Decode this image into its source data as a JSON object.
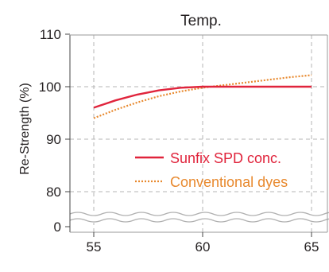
{
  "chart_data": {
    "type": "line",
    "title": "Temp.",
    "xlabel": "",
    "ylabel": "Re-Strength (%)",
    "xlim": [
      54,
      66
    ],
    "x_ticks": [
      "55",
      "60",
      "65"
    ],
    "y_ticks_upper": [
      "110",
      "100",
      "90",
      "80"
    ],
    "y_ticks_lower": [
      "0"
    ],
    "ylim_upper": [
      75,
      110
    ],
    "axis_break": true,
    "grid": true,
    "legend_position": "center-right",
    "series": [
      {
        "name": "Sunfix SPD conc.",
        "color": "#e0243c",
        "style": "solid",
        "x": [
          55,
          56,
          57,
          58,
          59,
          60,
          61,
          62,
          63,
          64,
          65
        ],
        "y": [
          96.0,
          97.4,
          98.5,
          99.3,
          99.8,
          100.0,
          100.0,
          100.0,
          100.0,
          100.0,
          100.0
        ]
      },
      {
        "name": "Conventional dyes",
        "color": "#e8892e",
        "style": "dotted",
        "x": [
          55,
          56,
          57,
          58,
          59,
          60,
          61,
          62,
          63,
          64,
          65
        ],
        "y": [
          94.0,
          95.6,
          97.0,
          98.2,
          99.1,
          99.8,
          100.3,
          100.8,
          101.3,
          101.8,
          102.2
        ]
      }
    ]
  }
}
